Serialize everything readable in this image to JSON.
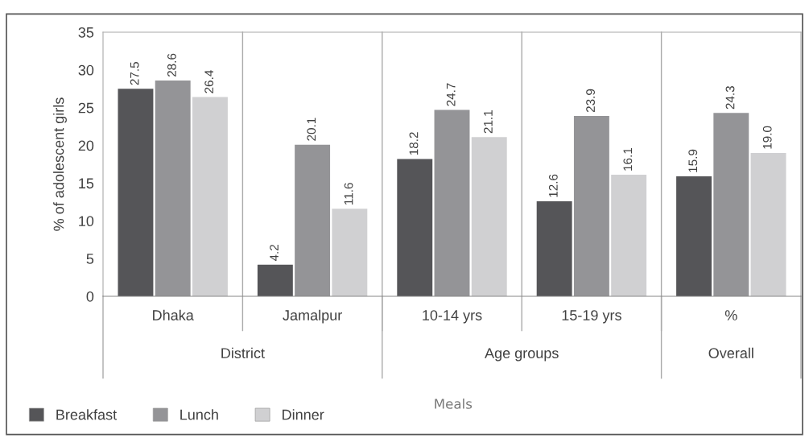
{
  "chart_data": {
    "type": "bar",
    "ylabel": "% of adolescent girls",
    "categories": [
      "Dhaka",
      "Jamalpur",
      "10-14 yrs",
      "15-19 yrs",
      "%"
    ],
    "series": [
      {
        "name": "Breakfast",
        "color": "#555558",
        "values": [
          27.5,
          4.2,
          18.2,
          12.6,
          15.9
        ]
      },
      {
        "name": "Lunch",
        "color": "#949497",
        "values": [
          28.6,
          20.1,
          24.7,
          23.9,
          24.3
        ]
      },
      {
        "name": "Dinner",
        "color": "#d0d0d2",
        "values": [
          26.4,
          11.6,
          21.1,
          16.1,
          19.0
        ]
      }
    ],
    "value_labels": [
      [
        "27.5",
        "4.2",
        "18.2",
        "12.6",
        "15.9"
      ],
      [
        "28.6",
        "20.1",
        "24.7",
        "23.9",
        "24.3"
      ],
      [
        "26.4",
        "11.6",
        "21.1",
        "16.1",
        "19.0"
      ]
    ],
    "annotations": [
      "District",
      "Age groups",
      "Overall",
      "Meals"
    ],
    "ylim": [
      0,
      35
    ],
    "yticks": [
      0,
      5,
      10,
      15,
      20,
      25,
      30,
      35
    ],
    "grid": false,
    "legend": "bottom left"
  }
}
